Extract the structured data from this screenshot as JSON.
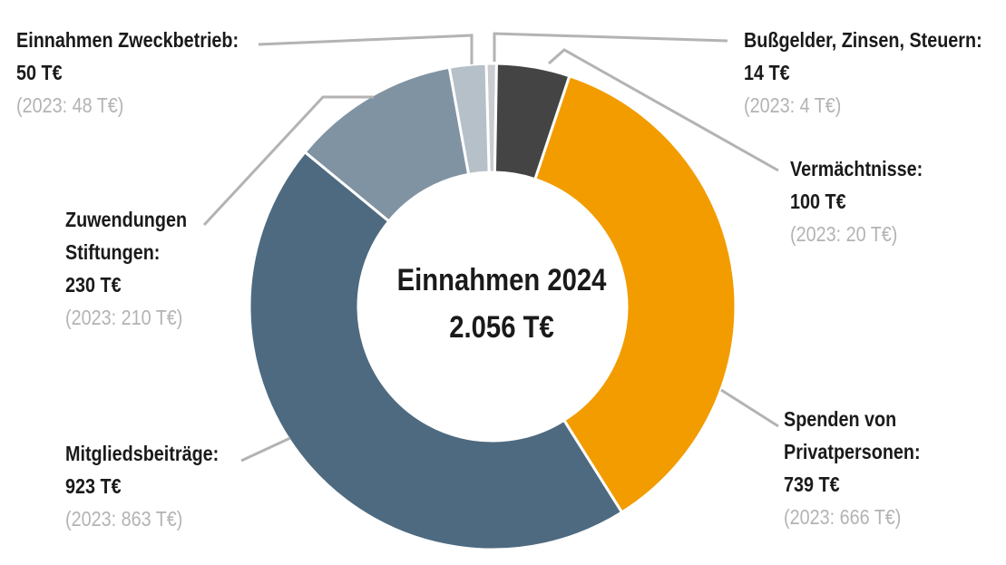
{
  "center": {
    "title": "Einnahmen 2024",
    "total": "2.056 T€"
  },
  "chart_data": {
    "type": "pie",
    "title": "Einnahmen 2024",
    "total_label": "2.056 T€",
    "unit": "T€",
    "slices": [
      {
        "name": "Bußgelder, Zinsen, Steuern:",
        "value": 14,
        "value_label": "14 T€",
        "prev_label": "(2023: 4 T€)",
        "color": "#c9ccd1"
      },
      {
        "name": "Vermächtnisse:",
        "value": 100,
        "value_label": "100 T€",
        "prev_label": "(2023: 20 T€)",
        "color": "#444444"
      },
      {
        "name": "Spenden von Privatpersonen:",
        "value": 739,
        "value_label": "739 T€",
        "prev_label": "(2023: 666 T€)",
        "color": "#f29c00"
      },
      {
        "name": "Mitgliedsbeiträge:",
        "value": 923,
        "value_label": "923 T€",
        "prev_label": "(2023: 863 T€)",
        "color": "#4e6a80"
      },
      {
        "name": "Zuwendungen Stiftungen:",
        "value": 230,
        "value_label": "230 T€",
        "prev_label": "(2023: 210 T€)",
        "color": "#8093a3"
      },
      {
        "name": "Einnahmen Zweckbetrieb:",
        "value": 50,
        "value_label": "50 T€",
        "prev_label": "(2023: 48 T€)",
        "color": "#b6c0c9"
      }
    ]
  },
  "labels": {
    "bussgelder": {
      "name": "Bußgelder, Zinsen, Steuern:",
      "value": "14 T€",
      "prev": "(2023: 4 T€)"
    },
    "vermaechtnisse": {
      "name": "Vermächtnisse:",
      "value": "100 T€",
      "prev": "(2023: 20 T€)"
    },
    "spenden": {
      "name1": "Spenden von",
      "name2": "Privatpersonen:",
      "value": "739 T€",
      "prev": "(2023: 666 T€)"
    },
    "mitglieds": {
      "name": "Mitgliedsbeiträge:",
      "value": "923 T€",
      "prev": "(2023: 863 T€)"
    },
    "zuwendungen": {
      "name1": "Zuwendungen",
      "name2": "Stiftungen:",
      "value": "230 T€",
      "prev": "(2023: 210 T€)"
    },
    "zweckbetrieb": {
      "name": "Einnahmen Zweckbetrieb:",
      "value": "50 T€",
      "prev": "(2023: 48 T€)"
    }
  }
}
